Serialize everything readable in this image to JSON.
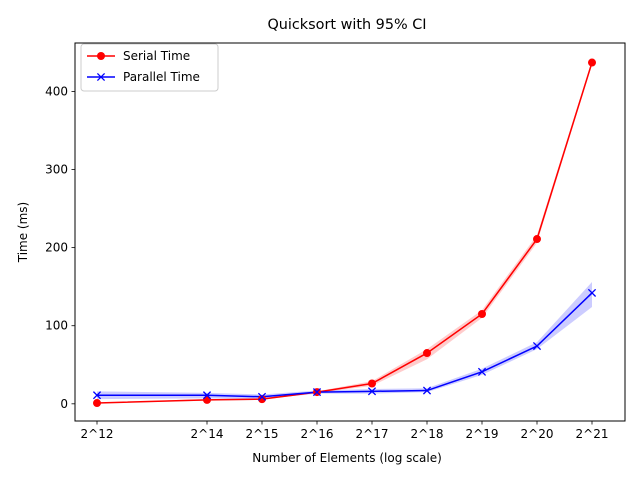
{
  "chart_data": {
    "type": "line",
    "title": "Quicksort with 95% CI",
    "xlabel": "Number of Elements (log scale)",
    "ylabel": "Time (ms)",
    "x_scale": "log2",
    "x": [
      12,
      14,
      15,
      16,
      17,
      18,
      19,
      20,
      21
    ],
    "x_tick_labels": [
      "2^12",
      "2^14",
      "2^15",
      "2^16",
      "2^17",
      "2^18",
      "2^19",
      "2^20",
      "2^21"
    ],
    "xlim": [
      11.6,
      21.6
    ],
    "ylim": [
      -22,
      462
    ],
    "y_ticks": [
      0,
      100,
      200,
      300,
      400
    ],
    "grid": false,
    "legend_position": "top-left",
    "series": [
      {
        "name": "Serial Time",
        "color": "#ff0000",
        "marker": "circle",
        "values": [
          1,
          5,
          6,
          15,
          26,
          65,
          115,
          211,
          437
        ],
        "ci_low": [
          0.5,
          4,
          5,
          14,
          23,
          57,
          110,
          206,
          434
        ],
        "ci_high": [
          1.5,
          6,
          7,
          16,
          29,
          70,
          120,
          216,
          440
        ]
      },
      {
        "name": "Parallel Time",
        "color": "#0000ff",
        "marker": "x",
        "values": [
          11,
          11,
          9,
          15,
          16,
          17,
          41,
          74,
          142
        ],
        "ci_low": [
          6,
          7,
          6,
          13,
          13,
          15,
          37,
          70,
          124
        ],
        "ci_high": [
          16,
          14,
          12,
          17,
          19,
          20,
          45,
          79,
          156
        ]
      }
    ]
  }
}
